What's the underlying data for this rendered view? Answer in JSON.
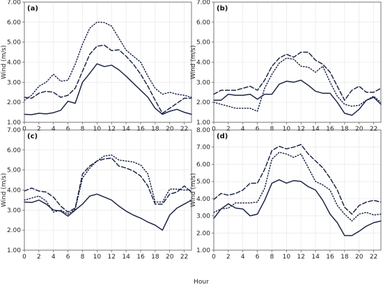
{
  "figure": {
    "xlabel": "Hour",
    "colors": {
      "series": "#1b2545",
      "grid": "#e4e4e4",
      "frame": "#555555"
    }
  },
  "chart_data": [
    {
      "type": "line",
      "panel_label": "(a)",
      "xlabel": "",
      "ylabel": "Wind (m/s)",
      "xlim": [
        0,
        23
      ],
      "ylim": [
        1.0,
        7.0
      ],
      "xticks": [
        0,
        2,
        4,
        6,
        8,
        10,
        12,
        14,
        16,
        18,
        20,
        22
      ],
      "yticks": [
        "1.00",
        "2.00",
        "3.00",
        "4.00",
        "5.00",
        "6.00",
        "7.00"
      ],
      "grid": true,
      "x": [
        0,
        1,
        2,
        3,
        4,
        5,
        6,
        7,
        8,
        9,
        10,
        11,
        12,
        13,
        14,
        15,
        16,
        17,
        18,
        19,
        20,
        21,
        22,
        23
      ],
      "series": [
        {
          "style": "solid",
          "values": [
            1.4,
            1.38,
            1.45,
            1.42,
            1.48,
            1.6,
            2.05,
            1.95,
            3.0,
            3.45,
            3.92,
            3.78,
            3.85,
            3.62,
            3.3,
            2.95,
            2.6,
            2.25,
            1.7,
            1.4,
            1.55,
            1.65,
            1.5,
            1.4
          ]
        },
        {
          "style": "dashed",
          "values": [
            2.25,
            2.2,
            2.45,
            2.55,
            2.5,
            2.25,
            2.35,
            2.7,
            3.55,
            4.4,
            4.8,
            4.85,
            4.58,
            4.62,
            4.3,
            3.9,
            3.4,
            2.8,
            2.1,
            1.45,
            1.7,
            1.95,
            2.2,
            2.2
          ]
        },
        {
          "style": "dotted",
          "values": [
            2.1,
            2.35,
            2.8,
            3.0,
            3.4,
            3.05,
            3.1,
            3.9,
            4.9,
            5.7,
            6.0,
            5.98,
            5.8,
            5.2,
            4.6,
            4.3,
            4.0,
            3.3,
            2.7,
            2.4,
            2.5,
            2.4,
            2.35,
            2.25
          ]
        }
      ]
    },
    {
      "type": "line",
      "panel_label": "(b)",
      "xlabel": "",
      "ylabel": "Wind (m/s)",
      "xlim": [
        0,
        23
      ],
      "ylim": [
        1.0,
        7.0
      ],
      "xticks": [
        0,
        2,
        4,
        6,
        8,
        10,
        12,
        14,
        16,
        18,
        20,
        22
      ],
      "yticks": [
        "1.00",
        "2.00",
        "3.00",
        "4.00",
        "5.00",
        "6.00",
        "7.00"
      ],
      "grid": true,
      "x": [
        0,
        1,
        2,
        3,
        4,
        5,
        6,
        7,
        8,
        9,
        10,
        11,
        12,
        13,
        14,
        15,
        16,
        17,
        18,
        19,
        20,
        21,
        22,
        23
      ],
      "series": [
        {
          "style": "solid",
          "values": [
            2.1,
            2.1,
            2.4,
            2.35,
            2.35,
            2.4,
            2.15,
            2.4,
            2.4,
            2.9,
            3.05,
            3.0,
            3.1,
            2.85,
            2.55,
            2.45,
            2.45,
            2.0,
            1.45,
            1.35,
            1.65,
            2.1,
            2.25,
            1.9
          ]
        },
        {
          "style": "dashed",
          "values": [
            2.4,
            2.6,
            2.6,
            2.6,
            2.7,
            2.8,
            2.6,
            3.1,
            3.8,
            4.2,
            4.4,
            4.25,
            4.5,
            4.5,
            4.1,
            3.9,
            3.5,
            2.8,
            2.1,
            2.6,
            2.8,
            2.5,
            2.5,
            2.7
          ]
        },
        {
          "style": "dotted",
          "values": [
            2.0,
            1.9,
            1.8,
            1.7,
            1.7,
            1.7,
            1.55,
            2.7,
            3.4,
            3.95,
            4.2,
            4.15,
            3.8,
            3.75,
            3.5,
            3.8,
            3.0,
            2.3,
            1.9,
            1.8,
            1.85,
            2.1,
            2.3,
            2.0
          ]
        }
      ]
    },
    {
      "type": "line",
      "panel_label": "(c)",
      "xlabel": "",
      "ylabel": "Wind (m/s)",
      "xlim": [
        0,
        23
      ],
      "ylim": [
        1.0,
        7.0
      ],
      "xticks": [
        0,
        2,
        4,
        6,
        8,
        10,
        12,
        14,
        16,
        18,
        20,
        22
      ],
      "yticks": [
        "1.00",
        "2.00",
        "3.00",
        "4.00",
        "5.00",
        "6.00",
        "7.00"
      ],
      "grid": true,
      "x": [
        0,
        1,
        2,
        3,
        4,
        5,
        6,
        7,
        8,
        9,
        10,
        11,
        12,
        13,
        14,
        15,
        16,
        17,
        18,
        19,
        20,
        21,
        22,
        23
      ],
      "series": [
        {
          "style": "solid",
          "values": [
            3.4,
            3.38,
            3.5,
            3.3,
            3.0,
            2.95,
            2.7,
            3.0,
            3.3,
            3.7,
            3.8,
            3.65,
            3.5,
            3.2,
            2.95,
            2.75,
            2.6,
            2.4,
            2.25,
            2.0,
            2.75,
            3.1,
            3.3,
            3.5
          ]
        },
        {
          "style": "dashed",
          "values": [
            3.95,
            4.1,
            3.95,
            3.9,
            3.65,
            3.2,
            2.9,
            3.1,
            4.8,
            5.2,
            5.45,
            5.55,
            5.6,
            5.2,
            5.1,
            4.95,
            4.7,
            4.2,
            3.3,
            3.3,
            3.8,
            3.9,
            4.2,
            3.9
          ]
        },
        {
          "style": "dotted",
          "values": [
            3.5,
            3.6,
            3.7,
            3.45,
            2.9,
            3.0,
            2.8,
            3.05,
            4.6,
            5.1,
            5.45,
            5.7,
            5.75,
            5.5,
            5.45,
            5.4,
            5.25,
            4.8,
            3.4,
            3.4,
            4.05,
            4.05,
            4.0,
            4.0
          ]
        }
      ]
    },
    {
      "type": "line",
      "panel_label": "(d)",
      "xlabel": "",
      "ylabel": "Wind (m/s)",
      "xlim": [
        0,
        23
      ],
      "ylim": [
        1.0,
        8.0
      ],
      "xticks": [
        0,
        2,
        4,
        6,
        8,
        10,
        12,
        14,
        16,
        18,
        20,
        22
      ],
      "yticks": [
        "1.00",
        "2.00",
        "3.00",
        "4.00",
        "5.00",
        "6.00",
        "7.00",
        "8.00"
      ],
      "grid": true,
      "x": [
        0,
        1,
        2,
        3,
        4,
        5,
        6,
        7,
        8,
        9,
        10,
        11,
        12,
        13,
        14,
        15,
        16,
        17,
        18,
        19,
        20,
        21,
        22,
        23
      ],
      "series": [
        {
          "style": "solid",
          "values": [
            2.85,
            3.4,
            3.7,
            3.45,
            3.4,
            3.0,
            3.1,
            3.9,
            4.9,
            5.1,
            4.9,
            5.05,
            5.0,
            4.7,
            4.5,
            3.9,
            3.1,
            2.6,
            1.85,
            1.85,
            2.1,
            2.4,
            2.6,
            2.7
          ]
        },
        {
          "style": "dashed",
          "values": [
            3.95,
            4.3,
            4.2,
            4.3,
            4.5,
            4.9,
            4.9,
            5.7,
            6.8,
            7.05,
            6.9,
            7.0,
            7.15,
            6.6,
            6.2,
            5.8,
            5.2,
            4.5,
            3.5,
            3.1,
            3.6,
            3.8,
            3.9,
            3.8
          ]
        },
        {
          "style": "dotted",
          "values": [
            3.2,
            3.4,
            3.45,
            3.75,
            3.75,
            3.75,
            3.8,
            4.6,
            6.3,
            6.7,
            6.6,
            6.4,
            6.6,
            5.8,
            5.0,
            4.8,
            4.5,
            3.6,
            3.1,
            2.7,
            3.1,
            3.2,
            3.05,
            3.1
          ]
        }
      ]
    }
  ]
}
